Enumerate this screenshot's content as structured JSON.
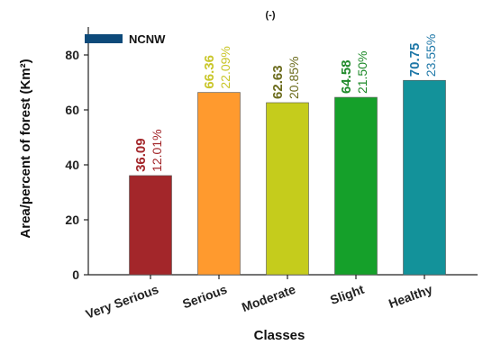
{
  "chart_data": {
    "type": "bar",
    "title": "(-)",
    "xlabel": "Classes",
    "ylabel": "Area/percent of forest (Km²)",
    "ylim": [
      0,
      90
    ],
    "yticks": [
      0,
      20,
      40,
      60,
      80
    ],
    "grid": false,
    "legend_position": "top-left",
    "legend": {
      "label": "NCNW",
      "color": "#0d4a7a"
    },
    "categories": [
      "Very Serious",
      "Serious",
      "Moderate",
      "Slight",
      "Healthy"
    ],
    "values": [
      36.09,
      66.36,
      62.63,
      64.58,
      70.75
    ],
    "value_labels": [
      "36.09",
      "66.36",
      "62.63",
      "64.58",
      "70.75"
    ],
    "percent_labels": [
      "12.01%",
      "22.09%",
      "20.85%",
      "21.50%",
      "23.55%"
    ],
    "bar_colors": [
      "#a3262a",
      "#ff9a2e",
      "#c5cc1c",
      "#15a02a",
      "#13929a"
    ],
    "label_colors": [
      "#a3262a",
      "#c9c62a",
      "#6b6b1c",
      "#1f8a2a",
      "#1f78a8"
    ]
  }
}
